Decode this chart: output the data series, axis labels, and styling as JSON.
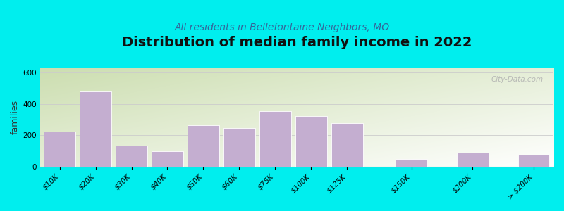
{
  "title": "Distribution of median family income in 2022",
  "subtitle": "All residents in Bellefontaine Neighbors, MO",
  "ylabel": "families",
  "categories": [
    "$10K",
    "$20K",
    "$30K",
    "$40K",
    "$50K",
    "$60K",
    "$75K",
    "$100K",
    "$125K",
    "$150K",
    "$200K",
    "> $200K"
  ],
  "values": [
    225,
    480,
    135,
    100,
    265,
    245,
    355,
    325,
    280,
    50,
    90,
    75
  ],
  "bar_color": "#c4aed0",
  "bar_edge_color": "#ffffff",
  "background_outer": "#00EEEE",
  "background_inner_topleft": "#ccddb0",
  "background_inner_bottomright": "#ffffff",
  "title_fontsize": 14,
  "subtitle_fontsize": 10,
  "ylabel_fontsize": 9,
  "tick_fontsize": 7.5,
  "ylim": [
    0,
    630
  ],
  "yticks": [
    0,
    200,
    400,
    600
  ],
  "watermark": "City-Data.com",
  "positions": [
    0,
    1,
    2,
    3,
    4,
    5,
    6,
    7,
    8,
    9.8,
    11.5,
    13.2
  ],
  "bar_width": 0.88
}
